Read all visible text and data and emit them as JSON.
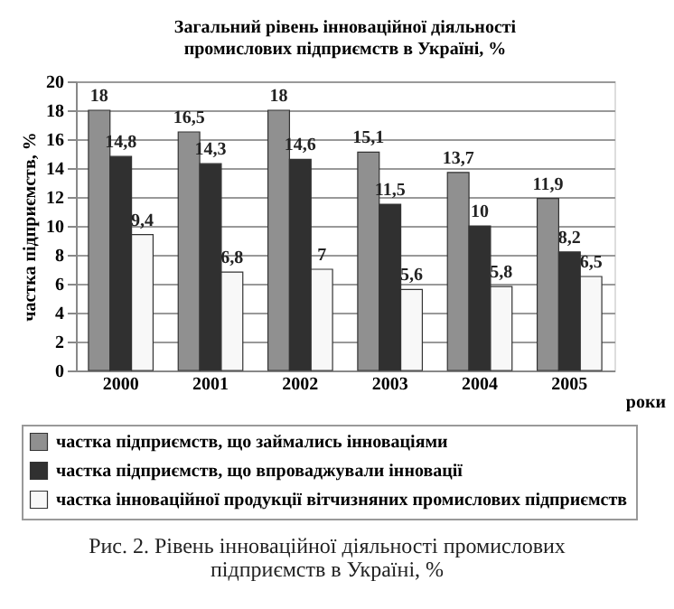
{
  "chart_data": {
    "type": "bar",
    "title": "Загальний рівень інноваційної діяльності\nпромислових підприємств в Україні, %",
    "categories": [
      "2000",
      "2001",
      "2002",
      "2003",
      "2004",
      "2005"
    ],
    "xlabel": "роки",
    "ylabel": "частка підприємств, %",
    "ylim": [
      0,
      20
    ],
    "yticks": [
      0,
      2,
      4,
      6,
      8,
      10,
      12,
      14,
      16,
      18,
      20
    ],
    "grid": "y",
    "legend": "bottom",
    "series": [
      {
        "name": "частка підприємств, що займались інноваціями",
        "color": "#909090",
        "values": [
          18,
          16.5,
          18,
          15.1,
          13.7,
          11.9
        ],
        "value_labels": [
          "18",
          "16,5",
          "18",
          "15,1",
          "13,7",
          "11,9"
        ]
      },
      {
        "name": "частка підприємств, що впроваджували інновації",
        "color": "#303030",
        "values": [
          14.8,
          14.3,
          14.6,
          11.5,
          10,
          8.2
        ],
        "value_labels": [
          "14,8",
          "14,3",
          "14,6",
          "11,5",
          "10",
          "8,2"
        ]
      },
      {
        "name": "частка інноваційної продукції вітчизняних промислових підприємств",
        "color": "#f8f8f8",
        "values": [
          9.4,
          6.8,
          7,
          5.6,
          5.8,
          6.5
        ],
        "value_labels": [
          "9,4",
          "6,8",
          "7",
          "5,6",
          "5,8",
          "6,5"
        ]
      }
    ],
    "annotations": [
      "Рис. 2. Рівень інноваційної діяльності промислових\nпідприємств в Україні, %"
    ]
  }
}
